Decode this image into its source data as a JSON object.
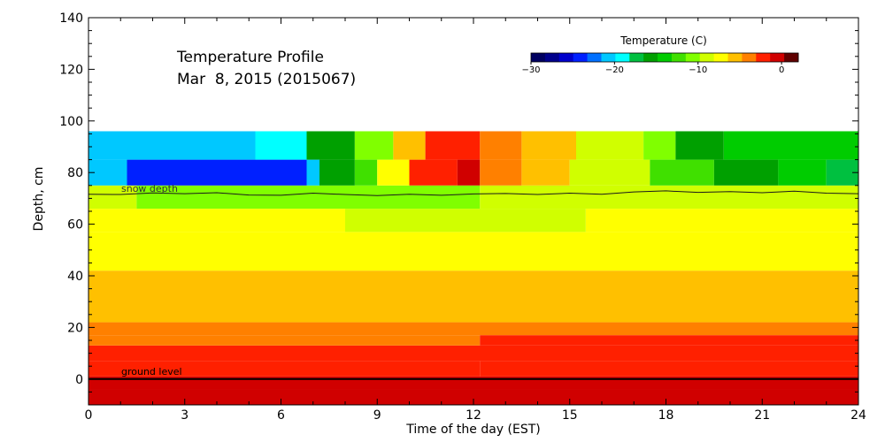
{
  "chart_data": {
    "type": "heatmap",
    "title": "Temperature Profile",
    "subtitle": "Mar  8, 2015 (2015067)",
    "xlabel": "Time of the day (EST)",
    "ylabel": "Depth, cm",
    "xlim": [
      0,
      24
    ],
    "ylim": [
      -10,
      140
    ],
    "xticks": [
      0,
      3,
      6,
      9,
      12,
      15,
      18,
      21,
      24
    ],
    "yticks": [
      0,
      20,
      40,
      60,
      80,
      100,
      120,
      140
    ],
    "colorbar": {
      "label": "Temperature (C)",
      "range": [
        -30,
        2
      ],
      "tick_values": [
        -30,
        -20,
        -10,
        0
      ],
      "tick_labels": [
        "−30",
        "−20",
        "−10",
        "0"
      ],
      "colors": [
        "#000060",
        "#00008c",
        "#0000cc",
        "#0020ff",
        "#0070ff",
        "#00c8ff",
        "#00ffff",
        "#00c040",
        "#00a000",
        "#00cc00",
        "#40e000",
        "#80ff00",
        "#d0ff00",
        "#ffff00",
        "#ffc000",
        "#ff8000",
        "#ff2000",
        "#d00000",
        "#600000"
      ]
    },
    "layers": [
      {
        "bottom": -10,
        "top": -4,
        "segments": [
          {
            "x0": 0,
            "x1": 24,
            "temp": -1.2
          }
        ]
      },
      {
        "bottom": -4,
        "top": 1,
        "segments": [
          {
            "x0": 0,
            "x1": 24,
            "temp": -1.2
          }
        ]
      },
      {
        "bottom": 1,
        "top": 7,
        "segments": [
          {
            "x0": 0,
            "x1": 12.2,
            "temp": -3.0
          },
          {
            "x0": 12.2,
            "x1": 24,
            "temp": -2.3
          }
        ]
      },
      {
        "bottom": 7,
        "top": 13,
        "segments": [
          {
            "x0": 0,
            "x1": 24,
            "temp": -3.0
          }
        ]
      },
      {
        "bottom": 13,
        "top": 17,
        "segments": [
          {
            "x0": 0,
            "x1": 12.2,
            "temp": -4.0
          },
          {
            "x0": 12.2,
            "x1": 24,
            "temp": -3.0
          }
        ]
      },
      {
        "bottom": 17,
        "top": 22,
        "segments": [
          {
            "x0": 0,
            "x1": 24,
            "temp": -4.0
          }
        ]
      },
      {
        "bottom": 22,
        "top": 42,
        "segments": [
          {
            "x0": 0,
            "x1": 24,
            "temp": -6.0
          }
        ]
      },
      {
        "bottom": 42,
        "top": 57,
        "segments": [
          {
            "x0": 0,
            "x1": 24,
            "temp": -8.0
          }
        ]
      },
      {
        "bottom": 57,
        "top": 66,
        "segments": [
          {
            "x0": 0,
            "x1": 8.0,
            "temp": -8.0
          },
          {
            "x0": 8.0,
            "x1": 15.5,
            "temp": -9.0
          },
          {
            "x0": 15.5,
            "x1": 24,
            "temp": -8.0
          }
        ]
      },
      {
        "bottom": 66,
        "top": 75,
        "segments": [
          {
            "x0": 0,
            "x1": 1.5,
            "temp": -9.0
          },
          {
            "x0": 1.5,
            "x1": 12.2,
            "temp": -11.0
          },
          {
            "x0": 12.2,
            "x1": 24,
            "temp": -9.0
          }
        ]
      },
      {
        "bottom": 75,
        "top": 85,
        "segments": [
          {
            "x0": 0,
            "x1": 1.2,
            "temp": -20
          },
          {
            "x0": 1.2,
            "x1": 6.8,
            "temp": -24
          },
          {
            "x0": 6.8,
            "x1": 7.2,
            "temp": -20
          },
          {
            "x0": 7.2,
            "x1": 8.3,
            "temp": -15
          },
          {
            "x0": 8.3,
            "x1": 9.0,
            "temp": -12
          },
          {
            "x0": 9.0,
            "x1": 10.0,
            "temp": -8
          },
          {
            "x0": 10.0,
            "x1": 11.5,
            "temp": -3
          },
          {
            "x0": 11.5,
            "x1": 12.2,
            "temp": -1
          },
          {
            "x0": 12.2,
            "x1": 13.5,
            "temp": -4
          },
          {
            "x0": 13.5,
            "x1": 15.0,
            "temp": -6
          },
          {
            "x0": 15.0,
            "x1": 17.5,
            "temp": -9
          },
          {
            "x0": 17.5,
            "x1": 19.5,
            "temp": -13
          },
          {
            "x0": 19.5,
            "x1": 21.5,
            "temp": -16
          },
          {
            "x0": 21.5,
            "x1": 23.0,
            "temp": -14
          },
          {
            "x0": 23.0,
            "x1": 24,
            "temp": -18
          }
        ]
      },
      {
        "bottom": 85,
        "top": 96,
        "segments": [
          {
            "x0": 0,
            "x1": 5.2,
            "temp": -20
          },
          {
            "x0": 5.2,
            "x1": 6.8,
            "temp": -19
          },
          {
            "x0": 6.8,
            "x1": 8.3,
            "temp": -15
          },
          {
            "x0": 8.3,
            "x1": 9.5,
            "temp": -11
          },
          {
            "x0": 9.5,
            "x1": 10.5,
            "temp": -6
          },
          {
            "x0": 10.5,
            "x1": 12.2,
            "temp": -3
          },
          {
            "x0": 12.2,
            "x1": 13.5,
            "temp": -4
          },
          {
            "x0": 13.5,
            "x1": 15.2,
            "temp": -5
          },
          {
            "x0": 15.2,
            "x1": 17.3,
            "temp": -9
          },
          {
            "x0": 17.3,
            "x1": 18.3,
            "temp": -11
          },
          {
            "x0": 18.3,
            "x1": 19.8,
            "temp": -15
          },
          {
            "x0": 19.8,
            "x1": 24,
            "temp": -14
          }
        ]
      }
    ],
    "snow_depth": {
      "label": "snow depth",
      "points": [
        [
          0,
          71.6
        ],
        [
          1,
          71.5
        ],
        [
          2,
          72.1
        ],
        [
          3,
          71.8
        ],
        [
          4,
          72.2
        ],
        [
          5,
          71.3
        ],
        [
          6,
          71.2
        ],
        [
          7,
          72.0
        ],
        [
          8,
          71.5
        ],
        [
          9,
          71.1
        ],
        [
          10,
          71.6
        ],
        [
          11,
          71.2
        ],
        [
          12,
          71.7
        ],
        [
          13,
          71.9
        ],
        [
          14,
          71.5
        ],
        [
          15,
          72.0
        ],
        [
          16,
          71.6
        ],
        [
          17,
          72.5
        ],
        [
          18,
          72.9
        ],
        [
          19,
          72.3
        ],
        [
          20,
          72.6
        ],
        [
          21,
          72.2
        ],
        [
          22,
          72.8
        ],
        [
          23,
          72.0
        ],
        [
          24,
          71.8
        ]
      ]
    },
    "ground_level": {
      "label": "ground level",
      "value": 0
    }
  }
}
